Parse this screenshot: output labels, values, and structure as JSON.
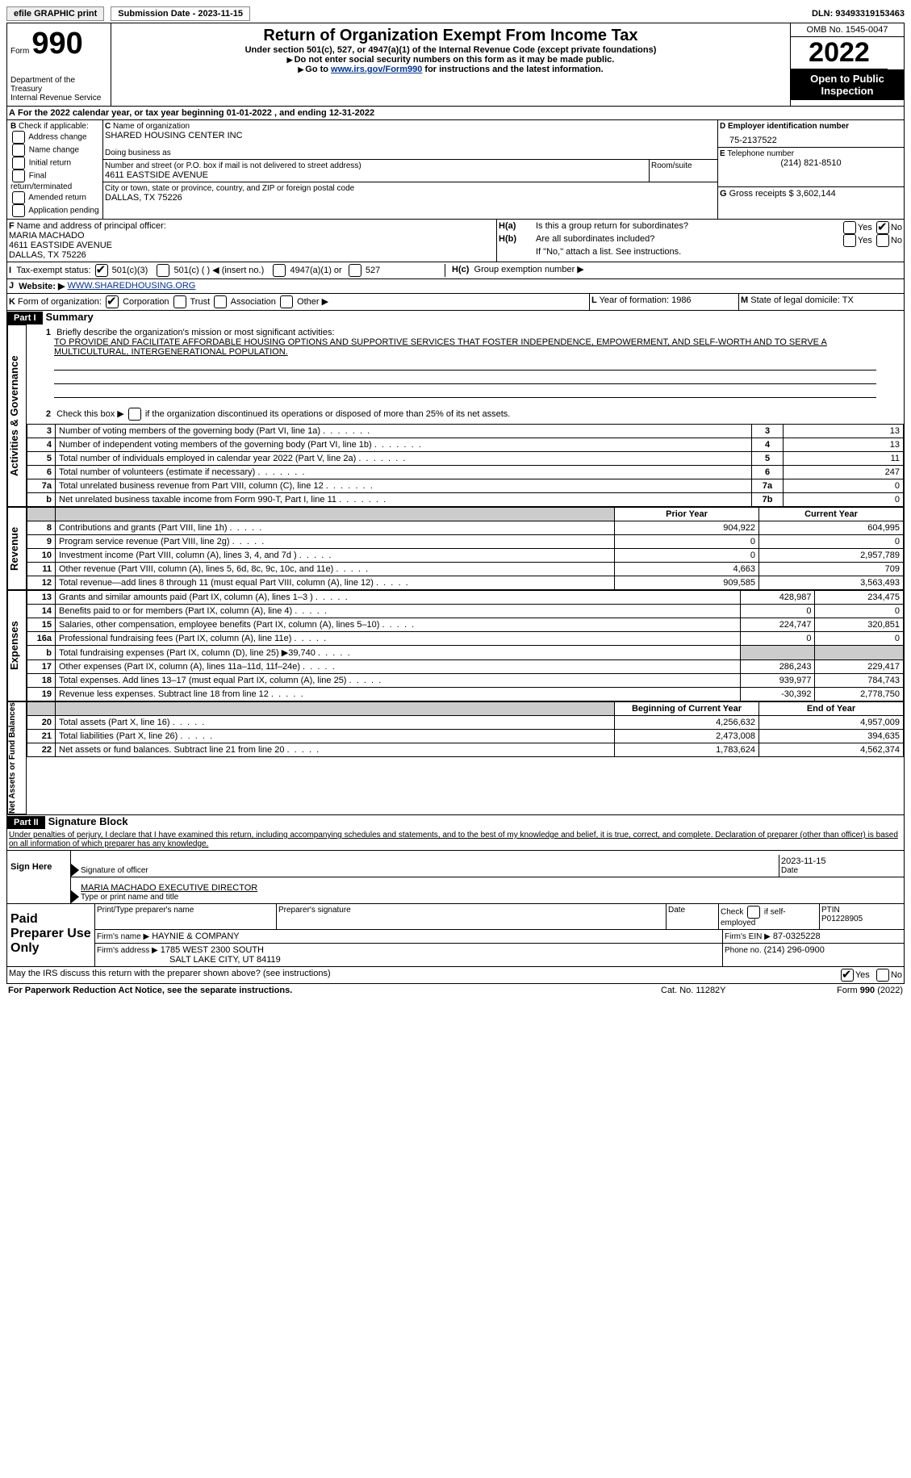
{
  "topbar": {
    "efile": "efile GRAPHIC print",
    "subdate_label": "Submission Date - ",
    "subdate": "2023-11-15",
    "dln_label": "DLN: ",
    "dln": "93493319153463"
  },
  "header": {
    "form_word": "Form",
    "form_num": "990",
    "dept": "Department of the Treasury\nInternal Revenue Service",
    "title": "Return of Organization Exempt From Income Tax",
    "sub1": "Under section 501(c), 527, or 4947(a)(1) of the Internal Revenue Code (except private foundations)",
    "sub2": "Do not enter social security numbers on this form as it may be made public.",
    "sub3_a": "Go to ",
    "sub3_link": "www.irs.gov/Form990",
    "sub3_b": " for instructions and the latest information.",
    "omb": "OMB No. 1545-0047",
    "year": "2022",
    "inspect": "Open to Public Inspection"
  },
  "A": {
    "text_a": "For the 2022 calendar year, or tax year beginning ",
    "begin": "01-01-2022",
    "text_b": " , and ending ",
    "end": "12-31-2022"
  },
  "B": {
    "label": "Check if applicable:",
    "opts": [
      "Address change",
      "Name change",
      "Initial return",
      "Final return/terminated",
      "Amended return",
      "Application pending"
    ]
  },
  "C": {
    "name_label": "Name of organization",
    "name": "SHARED HOUSING CENTER INC",
    "dba_label": "Doing business as",
    "dba": "",
    "street_label": "Number and street (or P.O. box if mail is not delivered to street address)",
    "room_label": "Room/suite",
    "street": "4611 EASTSIDE AVENUE",
    "city_label": "City or town, state or province, country, and ZIP or foreign postal code",
    "city": "DALLAS, TX  75226"
  },
  "D": {
    "label": "Employer identification number",
    "val": "75-2137522"
  },
  "E": {
    "label": "Telephone number",
    "val": "(214) 821-8510"
  },
  "G": {
    "label": "Gross receipts $",
    "val": "3,602,144"
  },
  "F": {
    "label": "Name and address of principal officer:",
    "name": "MARIA MACHADO",
    "street": "4611 EASTSIDE AVENUE",
    "city": "DALLAS, TX  75226"
  },
  "H": {
    "a": "Is this a group return for subordinates?",
    "b": "Are all subordinates included?",
    "b_note": "If \"No,\" attach a list. See instructions.",
    "c": "Group exemption number ▶",
    "yes": "Yes",
    "no": "No"
  },
  "I": {
    "label": "Tax-exempt status:",
    "o1": "501(c)(3)",
    "o2": "501(c) (   ) ◀ (insert no.)",
    "o3": "4947(a)(1) or",
    "o4": "527"
  },
  "J": {
    "label": "Website: ▶",
    "val": "WWW.SHAREDHOUSING.ORG"
  },
  "K": {
    "label": "Form of organization:",
    "o1": "Corporation",
    "o2": "Trust",
    "o3": "Association",
    "o4": "Other ▶"
  },
  "L": {
    "label": "Year of formation:",
    "val": "1986"
  },
  "M": {
    "label": "State of legal domicile:",
    "val": "TX"
  },
  "part1": {
    "hdr": "Part I",
    "title": "Summary",
    "l1a": "Briefly describe the organization's mission or most significant activities:",
    "l1b": "TO PROVIDE AND FACILITATE AFFORDABLE HOUSING OPTIONS AND SUPPORTIVE SERVICES THAT FOSTER INDEPENDENCE, EMPOWERMENT, AND SELF-WORTH AND TO SERVE A MULTICULTURAL, INTERGENERATIONAL POPULATION.",
    "l2": "Check this box ▶       if the organization discontinued its operations or disposed of more than 25% of its net assets.",
    "vert1": "Activities & Governance",
    "vert2": "Revenue",
    "vert3": "Expenses",
    "vert4": "Net Assets or Fund Balances",
    "col_prior": "Prior Year",
    "col_current": "Current Year",
    "col_boy": "Beginning of Current Year",
    "col_eoy": "End of Year",
    "rows_gov": [
      {
        "n": "3",
        "t": "Number of voting members of the governing body (Part VI, line 1a)",
        "box": "3",
        "v": "13"
      },
      {
        "n": "4",
        "t": "Number of independent voting members of the governing body (Part VI, line 1b)",
        "box": "4",
        "v": "13"
      },
      {
        "n": "5",
        "t": "Total number of individuals employed in calendar year 2022 (Part V, line 2a)",
        "box": "5",
        "v": "11"
      },
      {
        "n": "6",
        "t": "Total number of volunteers (estimate if necessary)",
        "box": "6",
        "v": "247"
      },
      {
        "n": "7a",
        "t": "Total unrelated business revenue from Part VIII, column (C), line 12",
        "box": "7a",
        "v": "0"
      },
      {
        "n": "b",
        "t": "Net unrelated business taxable income from Form 990-T, Part I, line 11",
        "box": "7b",
        "v": "0"
      }
    ],
    "rows_rev": [
      {
        "n": "8",
        "t": "Contributions and grants (Part VIII, line 1h)",
        "p": "904,922",
        "c": "604,995"
      },
      {
        "n": "9",
        "t": "Program service revenue (Part VIII, line 2g)",
        "p": "0",
        "c": "0"
      },
      {
        "n": "10",
        "t": "Investment income (Part VIII, column (A), lines 3, 4, and 7d )",
        "p": "0",
        "c": "2,957,789"
      },
      {
        "n": "11",
        "t": "Other revenue (Part VIII, column (A), lines 5, 6d, 8c, 9c, 10c, and 11e)",
        "p": "4,663",
        "c": "709"
      },
      {
        "n": "12",
        "t": "Total revenue—add lines 8 through 11 (must equal Part VIII, column (A), line 12)",
        "p": "909,585",
        "c": "3,563,493"
      }
    ],
    "rows_exp": [
      {
        "n": "13",
        "t": "Grants and similar amounts paid (Part IX, column (A), lines 1–3 )",
        "p": "428,987",
        "c": "234,475"
      },
      {
        "n": "14",
        "t": "Benefits paid to or for members (Part IX, column (A), line 4)",
        "p": "0",
        "c": "0"
      },
      {
        "n": "15",
        "t": "Salaries, other compensation, employee benefits (Part IX, column (A), lines 5–10)",
        "p": "224,747",
        "c": "320,851"
      },
      {
        "n": "16a",
        "t": "Professional fundraising fees (Part IX, column (A), line 11e)",
        "p": "0",
        "c": "0"
      },
      {
        "n": "b",
        "t": "Total fundraising expenses (Part IX, column (D), line 25) ▶39,740",
        "p": "shade",
        "c": "shade"
      },
      {
        "n": "17",
        "t": "Other expenses (Part IX, column (A), lines 11a–11d, 11f–24e)",
        "p": "286,243",
        "c": "229,417"
      },
      {
        "n": "18",
        "t": "Total expenses. Add lines 13–17 (must equal Part IX, column (A), line 25)",
        "p": "939,977",
        "c": "784,743"
      },
      {
        "n": "19",
        "t": "Revenue less expenses. Subtract line 18 from line 12",
        "p": "-30,392",
        "c": "2,778,750"
      }
    ],
    "rows_net": [
      {
        "n": "20",
        "t": "Total assets (Part X, line 16)",
        "p": "4,256,632",
        "c": "4,957,009"
      },
      {
        "n": "21",
        "t": "Total liabilities (Part X, line 26)",
        "p": "2,473,008",
        "c": "394,635"
      },
      {
        "n": "22",
        "t": "Net assets or fund balances. Subtract line 21 from line 20",
        "p": "1,783,624",
        "c": "4,562,374"
      }
    ]
  },
  "part2": {
    "hdr": "Part II",
    "title": "Signature Block",
    "decl": "Under penalties of perjury, I declare that I have examined this return, including accompanying schedules and statements, and to the best of my knowledge and belief, it is true, correct, and complete. Declaration of preparer (other than officer) is based on all information of which preparer has any knowledge.",
    "sign_here": "Sign Here",
    "sig_officer": "Signature of officer",
    "sig_date": "2023-11-15",
    "date_lbl": "Date",
    "officer_name": "MARIA MACHADO  EXECUTIVE DIRECTOR",
    "type_name": "Type or print name and title",
    "paid": "Paid Preparer Use Only",
    "prep_name_lbl": "Print/Type preparer's name",
    "prep_sig_lbl": "Preparer's signature",
    "check_self": "Check         if self-employed",
    "ptin_lbl": "PTIN",
    "ptin": "P01228905",
    "firm_name_lbl": "Firm's name   ▶",
    "firm_name": "HAYNIE & COMPANY",
    "firm_ein_lbl": "Firm's EIN ▶",
    "firm_ein": "87-0325228",
    "firm_addr_lbl": "Firm's address ▶",
    "firm_addr1": "1785 WEST 2300 SOUTH",
    "firm_addr2": "SALT LAKE CITY, UT  84119",
    "phone_lbl": "Phone no.",
    "phone": "(214) 296-0900",
    "discuss": "May the IRS discuss this return with the preparer shown above? (see instructions)",
    "yes": "Yes",
    "no": "No"
  },
  "footer": {
    "pra": "For Paperwork Reduction Act Notice, see the separate instructions.",
    "cat": "Cat. No. 11282Y",
    "form": "Form 990 (2022)"
  }
}
